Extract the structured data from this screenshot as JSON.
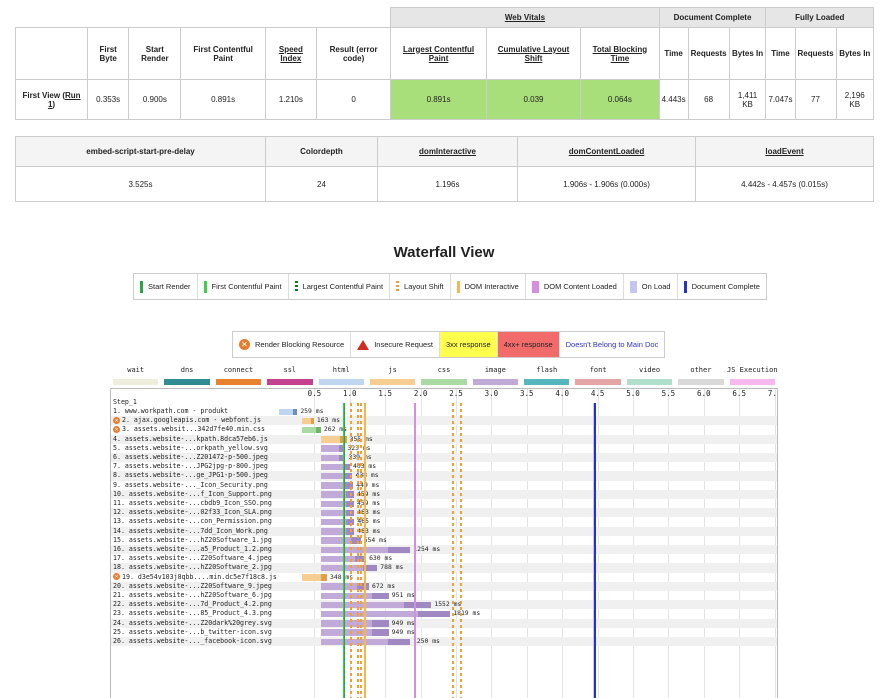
{
  "summary": {
    "groups": [
      "Web Vitals",
      "Document Complete",
      "Fully Loaded"
    ],
    "headers": [
      "First Byte",
      "Start Render",
      "First Contentful Paint",
      "Speed Index",
      "Result (error code)",
      "Largest Contentful Paint",
      "Cumulative Layout Shift",
      "Total Blocking Time",
      "Time",
      "Requests",
      "Bytes In",
      "Time",
      "Requests",
      "Bytes In"
    ],
    "row_label": "First View (",
    "row_link": "Run 1",
    "row_label_end": ")",
    "values": [
      "0.353s",
      "0.900s",
      "0.891s",
      "1.210s",
      "0",
      "0.891s",
      "0.039",
      "0.064s",
      "4.443s",
      "68",
      "1,411 KB",
      "7.047s",
      "77",
      "2,196 KB"
    ]
  },
  "timing": {
    "headers": [
      "embed-script-start-pre-delay",
      "Colordepth",
      "domInteractive",
      "domContentLoaded",
      "loadEvent"
    ],
    "values": [
      "3.525s",
      "24",
      "1.196s",
      "1.906s - 1.906s (0.000s)",
      "4.442s - 4.457s (0.015s)"
    ]
  },
  "waterfall": {
    "title": "Waterfall View",
    "legend1": [
      {
        "label": "Start Render",
        "color": "#28a745",
        "kind": "line"
      },
      {
        "label": "First Contentful Paint",
        "color": "#39d148",
        "kind": "line"
      },
      {
        "label": "Largest Contentful Paint",
        "color": "#0f7a1d",
        "kind": "dash"
      },
      {
        "label": "Layout Shift",
        "color": "#f29b32",
        "kind": "dash"
      },
      {
        "label": "DOM Interactive",
        "color": "#f4b64f",
        "kind": "line"
      },
      {
        "label": "DOM Content Loaded",
        "color": "#d88ee0",
        "kind": "box"
      },
      {
        "label": "On Load",
        "color": "#c5c5f2",
        "kind": "box"
      },
      {
        "label": "Document Complete",
        "color": "#2233cc",
        "kind": "line"
      }
    ],
    "legend2": [
      "Render Blocking Resource",
      "Insecure Request",
      "3xx response",
      "4xx+ response",
      "Doesn't Belong to Main Doc"
    ],
    "types": [
      {
        "name": "wait",
        "color": "#eeeedd"
      },
      {
        "name": "dns",
        "color": "#2f8c93"
      },
      {
        "name": "connect",
        "color": "#e8822e"
      },
      {
        "name": "ssl",
        "color": "#c4418f"
      },
      {
        "name": "html",
        "color": "#bfd6f0"
      },
      {
        "name": "js",
        "color": "#f6ce92"
      },
      {
        "name": "css",
        "color": "#a9dba3"
      },
      {
        "name": "image",
        "color": "#c2aad8"
      },
      {
        "name": "flash",
        "color": "#56b6bd"
      },
      {
        "name": "font",
        "color": "#e4a5a5"
      },
      {
        "name": "video",
        "color": "#b0e0cb"
      },
      {
        "name": "other",
        "color": "#d9d9d9"
      },
      {
        "name": "JS Execution",
        "color": "#f6b8ee"
      }
    ],
    "ticks": [
      "0.5",
      "1.0",
      "1.5",
      "2.0",
      "2.5",
      "3.0",
      "3.5",
      "4.0",
      "4.5",
      "5.0",
      "5.5",
      "6.0",
      "6.5",
      "7.0"
    ],
    "step": "Step_1",
    "requests": [
      {
        "label": "1. www.workpath.com - produkt",
        "start": 0.0,
        "dur": 0.259,
        "ms": "259 ms",
        "type": "html",
        "blocking": false
      },
      {
        "label": "2. ajax.googleapis.com - webfont.js",
        "start": 0.33,
        "dur": 0.163,
        "ms": "163 ms",
        "type": "js",
        "blocking": true
      },
      {
        "label": "3. assets.websit...342d7fe40.min.css",
        "start": 0.33,
        "dur": 0.262,
        "ms": "262 ms",
        "type": "css",
        "blocking": true
      },
      {
        "label": "4. assets.website-...kpath.8dca57eb6.js",
        "start": 0.6,
        "dur": 0.355,
        "ms": "355 ms",
        "type": "js",
        "blocking": false
      },
      {
        "label": "5. assets.website-...orkpath_yellow.svg",
        "start": 0.6,
        "dur": 0.323,
        "ms": "323 ms",
        "type": "image",
        "blocking": false
      },
      {
        "label": "6. assets.website-...Z201472-p-500.jpeg",
        "start": 0.6,
        "dur": 0.339,
        "ms": "339 ms",
        "type": "image",
        "blocking": false
      },
      {
        "label": "7. assets.website-...JPG2jpg-p-800.jpeg",
        "start": 0.6,
        "dur": 0.403,
        "ms": "403 ms",
        "type": "image",
        "blocking": false
      },
      {
        "label": "8. assets.website-...ge_JPG1-p-500.jpeg",
        "start": 0.6,
        "dur": 0.438,
        "ms": "438 ms",
        "type": "image",
        "blocking": false
      },
      {
        "label": "9. assets.website-..._Icon_Security.png",
        "start": 0.6,
        "dur": 0.449,
        "ms": "449 ms",
        "type": "image",
        "blocking": false
      },
      {
        "label": "10. assets.website-...f_Icon_Support.png",
        "start": 0.6,
        "dur": 0.459,
        "ms": "459 ms",
        "type": "image",
        "blocking": false
      },
      {
        "label": "11. assets.website-...cbdb9_Icon_SSO.png",
        "start": 0.6,
        "dur": 0.459,
        "ms": "459 ms",
        "type": "image",
        "blocking": false
      },
      {
        "label": "12. assets.website-...02f33_Icon_SLA.png",
        "start": 0.6,
        "dur": 0.463,
        "ms": "463 ms",
        "type": "image",
        "blocking": false
      },
      {
        "label": "13. assets.website-...con_Permission.png",
        "start": 0.6,
        "dur": 0.465,
        "ms": "465 ms",
        "type": "image",
        "blocking": false
      },
      {
        "label": "14. assets.website-...7dd_Icon_Work.png",
        "start": 0.6,
        "dur": 0.463,
        "ms": "463 ms",
        "type": "image",
        "blocking": false
      },
      {
        "label": "15. assets.website-...hZ20Software_1.jpg",
        "start": 0.6,
        "dur": 0.554,
        "ms": "554 ms",
        "type": "image",
        "blocking": false
      },
      {
        "label": "16. assets.website-...a5_Product_1.2.png",
        "start": 0.6,
        "dur": 1.254,
        "ms": "1254 ms",
        "type": "image",
        "blocking": false
      },
      {
        "label": "17. assets.website-...Z20Software_4.jpeg",
        "start": 0.6,
        "dur": 0.63,
        "ms": "630 ms",
        "type": "image",
        "blocking": false
      },
      {
        "label": "18. assets.website-...hZ20Software_2.jpg",
        "start": 0.6,
        "dur": 0.788,
        "ms": "788 ms",
        "type": "image",
        "blocking": false
      },
      {
        "label": "19. d3e54v103j8qbb....min.dc5e7f18c8.js",
        "start": 0.33,
        "dur": 0.348,
        "ms": "348 ms",
        "type": "js",
        "blocking": true
      },
      {
        "label": "20. assets.website-...Z20Software_9.jpeg",
        "start": 0.6,
        "dur": 0.672,
        "ms": "672 ms",
        "type": "image",
        "blocking": false
      },
      {
        "label": "21. assets.website-...hZ20Software_6.jpg",
        "start": 0.6,
        "dur": 0.951,
        "ms": "951 ms",
        "type": "image",
        "blocking": false
      },
      {
        "label": "22. assets.website-...7d_Product_4.2.png",
        "start": 0.6,
        "dur": 1.552,
        "ms": "1552 ms",
        "type": "image",
        "blocking": false
      },
      {
        "label": "23. assets.website-...85_Product_4.3.png",
        "start": 0.6,
        "dur": 1.819,
        "ms": "1819 ms",
        "type": "image",
        "blocking": false
      },
      {
        "label": "24. assets.website-...Z20dark%20grey.svg",
        "start": 0.6,
        "dur": 0.949,
        "ms": "949 ms",
        "type": "image",
        "blocking": false
      },
      {
        "label": "25. assets.website-...b_twitter-icon.svg",
        "start": 0.6,
        "dur": 0.949,
        "ms": "949 ms",
        "type": "image",
        "blocking": false
      },
      {
        "label": "26. assets.website-..._facebook-icon.svg",
        "start": 0.6,
        "dur": 1.25,
        "ms": "1250 ms",
        "type": "image",
        "blocking": false
      }
    ],
    "markers": {
      "start_render": 0.9,
      "fcp": 0.891,
      "lcp": 0.891,
      "layout_shifts": [
        1.0,
        1.1,
        1.15,
        2.45,
        2.55
      ],
      "dom_interactive": 1.196,
      "dom_content_loaded": 1.906,
      "on_load": 4.442,
      "doc_complete": 4.443
    }
  }
}
